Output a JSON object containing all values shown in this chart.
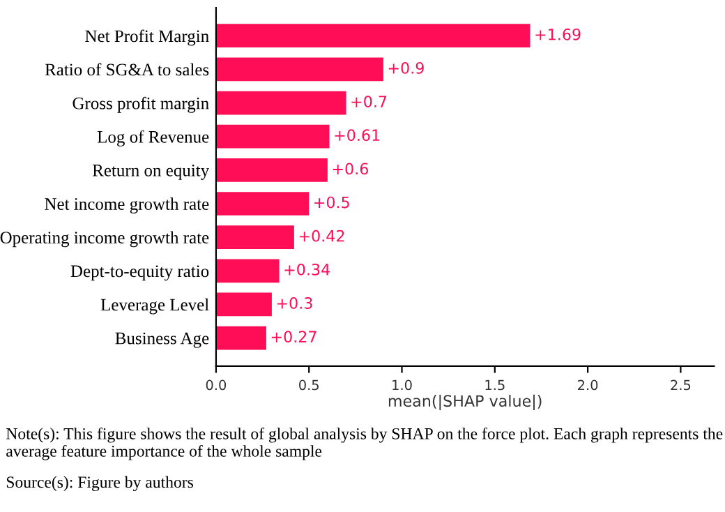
{
  "chart_data": {
    "type": "bar",
    "orientation": "horizontal",
    "categories": [
      "Net Profit Margin",
      "Ratio of SG&A to sales",
      "Gross profit margin",
      "Log of Revenue",
      "Return on equity",
      "Net income growth rate",
      "Operating income growth rate",
      "Dept-to-equity ratio",
      "Leverage Level",
      "Business Age"
    ],
    "values": [
      1.69,
      0.9,
      0.7,
      0.61,
      0.6,
      0.5,
      0.42,
      0.34,
      0.3,
      0.27
    ],
    "value_labels": [
      "+1.69",
      "+0.9",
      "+0.7",
      "+0.61",
      "+0.6",
      "+0.5",
      "+0.42",
      "+0.34",
      "+0.3",
      "+0.27"
    ],
    "color": "#ff0d57",
    "xlabel": "mean(|SHAP value|)",
    "xlim": [
      0,
      2.68
    ],
    "xticks": [
      {
        "value": 0,
        "label": "0.0"
      },
      {
        "value": 0.5,
        "label": "0.5"
      },
      {
        "value": 1.0,
        "label": "1.0"
      },
      {
        "value": 1.5,
        "label": "1.5"
      },
      {
        "value": 2.0,
        "label": "2.0"
      },
      {
        "value": 2.5,
        "label": "2.5"
      }
    ],
    "grid": false,
    "annotations": [
      "Note(s): This figure shows the result of global analysis by SHAP on the force plot. Each graph represents the average feature importance of the whole sample",
      "Source(s): Figure by authors"
    ]
  }
}
